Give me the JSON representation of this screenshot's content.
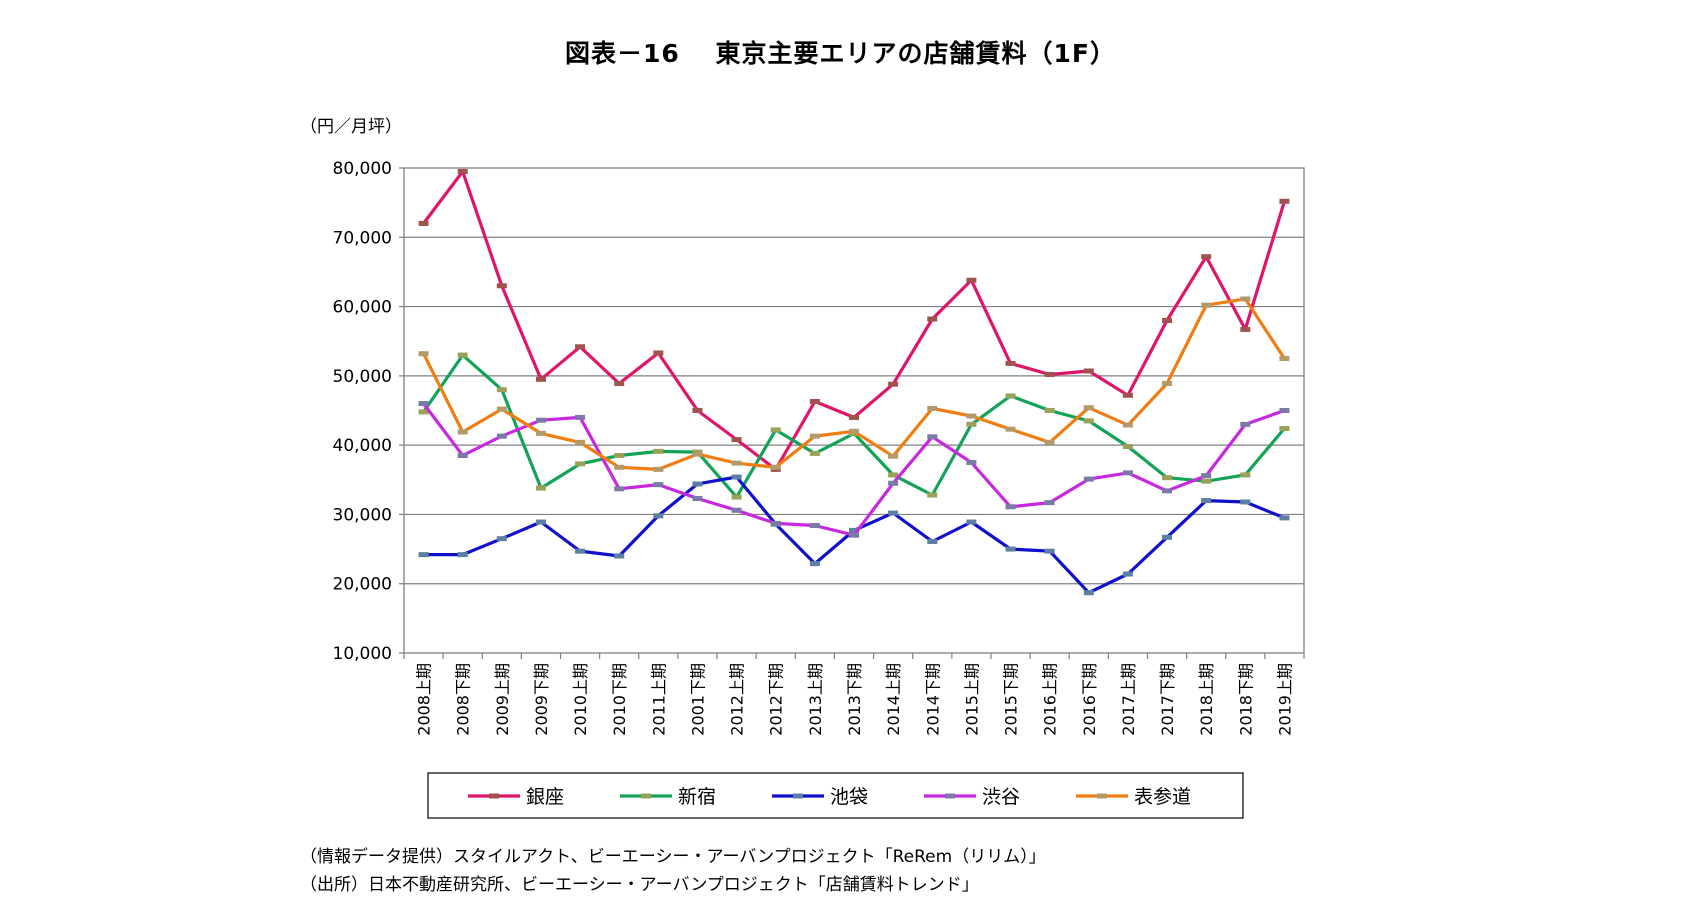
{
  "chart_data": {
    "type": "line",
    "title": "図表－16　 東京主要エリアの店舗賃料（1F）",
    "ylabel": "（円／月坪）",
    "ylim": [
      10000,
      80000
    ],
    "yticks": [
      "10,000",
      "20,000",
      "30,000",
      "40,000",
      "50,000",
      "60,000",
      "70,000",
      "80,000"
    ],
    "categories": [
      "2008上期",
      "2008下期",
      "2009上期",
      "2009下期",
      "2010上期",
      "2010下期",
      "2011上期",
      "2001下期",
      "2012上期",
      "2012下期",
      "2013上期",
      "2013下期",
      "2014上期",
      "2014下期",
      "2015上期",
      "2015下期",
      "2016上期",
      "2016下期",
      "2017上期",
      "2017下期",
      "2018上期",
      "2018下期",
      "2019上期"
    ],
    "grid": "horizontal",
    "legend_position": "bottom",
    "series": [
      {
        "name": "銀座",
        "color": "#e0156a",
        "marker": "#a0524e",
        "values": [
          72000,
          79500,
          63000,
          49500,
          54200,
          48900,
          53300,
          45000,
          40800,
          36500,
          46300,
          44000,
          48800,
          58200,
          63800,
          51800,
          50200,
          50700,
          47200,
          58000,
          67200,
          56700,
          75200
        ]
      },
      {
        "name": "新宿",
        "color": "#12a357",
        "marker": "#9aa25a",
        "values": [
          44800,
          53000,
          48000,
          33800,
          37300,
          38500,
          39100,
          39000,
          32500,
          42200,
          38800,
          41700,
          35700,
          32800,
          43000,
          47100,
          45000,
          43500,
          39800,
          35300,
          34800,
          35700,
          42400
        ]
      },
      {
        "name": "池袋",
        "color": "#1111cc",
        "marker": "#5d7fa4",
        "values": [
          24200,
          24200,
          26500,
          28900,
          24700,
          24000,
          29800,
          34400,
          35400,
          28600,
          22900,
          27700,
          30200,
          26100,
          28900,
          25000,
          24700,
          18700,
          21400,
          26700,
          32000,
          31800,
          29500
        ]
      },
      {
        "name": "渋谷",
        "color": "#c828e0",
        "marker": "#7a7aa8",
        "values": [
          46000,
          38500,
          41300,
          43600,
          44000,
          33700,
          34300,
          32300,
          30600,
          28700,
          28400,
          27000,
          34500,
          41200,
          37500,
          31100,
          31700,
          35100,
          36000,
          33400,
          35600,
          43000,
          45000
        ]
      },
      {
        "name": "表参道",
        "color": "#f07d12",
        "marker": "#b39a6a",
        "values": [
          53200,
          41900,
          45200,
          41700,
          40400,
          36800,
          36500,
          38700,
          37400,
          36800,
          41300,
          42000,
          38400,
          45300,
          44200,
          42300,
          40400,
          45400,
          42900,
          48900,
          60200,
          61100,
          52500
        ]
      }
    ]
  },
  "notes": {
    "source1": "（情報データ提供）スタイルアクト、ビーエーシー・アーバンプロジェクト「ReRem（リリム）」",
    "source2": "（出所）日本不動産研究所、ビーエーシー・アーバンプロジェクト「店舗賃料トレンド」"
  }
}
